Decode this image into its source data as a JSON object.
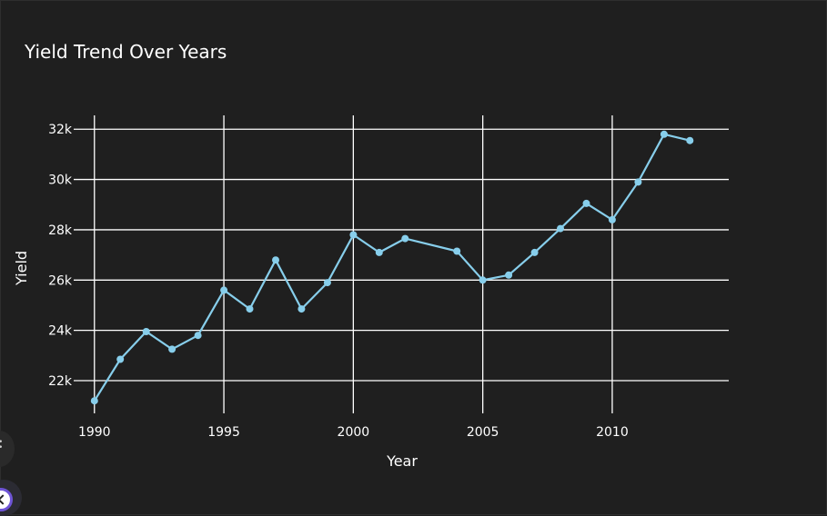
{
  "chart_data": {
    "type": "line",
    "title": "Yield Trend Over Years",
    "xlabel": "Year",
    "ylabel": "Yield",
    "xlim": [
      1989.2,
      2014.5
    ],
    "ylim": [
      20700,
      32550
    ],
    "x_ticks": [
      1990,
      1995,
      2000,
      2005,
      2010
    ],
    "x_tick_labels": [
      "1990",
      "1995",
      "2000",
      "2005",
      "2010"
    ],
    "y_ticks": [
      22000,
      24000,
      26000,
      28000,
      30000,
      32000
    ],
    "y_tick_labels": [
      "22k",
      "24k",
      "26k",
      "28k",
      "30k",
      "32k"
    ],
    "grid": true,
    "legend": "none",
    "line_color": "#87ceeb",
    "series": [
      {
        "name": "",
        "x": [
          1990,
          1991,
          1992,
          1993,
          1994,
          1995,
          1996,
          1997,
          1998,
          1999,
          2000,
          2001,
          2002,
          2004,
          2005,
          2006,
          2007,
          2008,
          2009,
          2010,
          2011,
          2012,
          2013
        ],
        "values": [
          21200,
          22850,
          23950,
          23250,
          23800,
          25600,
          24850,
          26800,
          24850,
          25900,
          27800,
          27100,
          27650,
          27150,
          26000,
          26200,
          27100,
          28050,
          29050,
          28400,
          29900,
          31800,
          31550
        ]
      }
    ]
  }
}
